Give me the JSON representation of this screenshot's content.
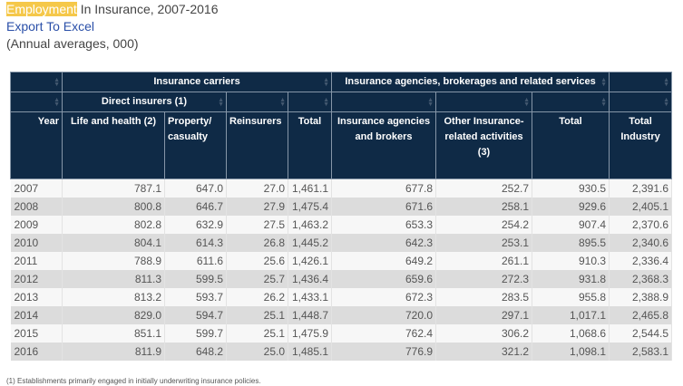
{
  "header": {
    "title_highlight": "Employment",
    "title_rest": " In Insurance, 2007-2016",
    "export_label": "Export To Excel",
    "subtitle": "(Annual averages, 000)"
  },
  "table": {
    "group_carriers": "Insurance carriers",
    "group_agencies": "Insurance agencies, brokerages and related services",
    "group_direct": "Direct insurers (1)",
    "col_year": "Year",
    "col_life": "Life and health (2)",
    "col_property": "Property/ casualty",
    "col_reinsurers": "Reinsurers",
    "col_total_carriers": "Total",
    "col_agencies": "Insurance agencies and brokers",
    "col_other": "Other Insurance-related activities (3)",
    "col_total_agencies": "Total",
    "col_total_industry": "Total Industry",
    "rows": [
      [
        "2007",
        "787.1",
        "647.0",
        "27.0",
        "1,461.1",
        "677.8",
        "252.7",
        "930.5",
        "2,391.6"
      ],
      [
        "2008",
        "800.8",
        "646.7",
        "27.9",
        "1,475.4",
        "671.6",
        "258.1",
        "929.6",
        "2,405.1"
      ],
      [
        "2009",
        "802.8",
        "632.9",
        "27.5",
        "1,463.2",
        "653.3",
        "254.2",
        "907.4",
        "2,370.6"
      ],
      [
        "2010",
        "804.1",
        "614.3",
        "26.8",
        "1,445.2",
        "642.3",
        "253.1",
        "895.5",
        "2,340.6"
      ],
      [
        "2011",
        "788.9",
        "611.6",
        "25.6",
        "1,426.1",
        "649.2",
        "261.1",
        "910.3",
        "2,336.4"
      ],
      [
        "2012",
        "811.3",
        "599.5",
        "25.7",
        "1,436.4",
        "659.6",
        "272.3",
        "931.8",
        "2,368.3"
      ],
      [
        "2013",
        "813.2",
        "593.7",
        "26.2",
        "1,433.1",
        "672.3",
        "283.5",
        "955.8",
        "2,388.9"
      ],
      [
        "2014",
        "829.0",
        "594.7",
        "25.1",
        "1,448.7",
        "720.0",
        "297.1",
        "1,017.1",
        "2,465.8"
      ],
      [
        "2015",
        "851.1",
        "599.7",
        "25.1",
        "1,475.9",
        "762.4",
        "306.2",
        "1,068.6",
        "2,544.5"
      ],
      [
        "2016",
        "811.9",
        "648.2",
        "25.0",
        "1,485.1",
        "776.9",
        "321.2",
        "1,098.1",
        "2,583.1"
      ]
    ]
  },
  "footnote": "(1) Establishments primarily engaged in initially underwriting insurance policies."
}
